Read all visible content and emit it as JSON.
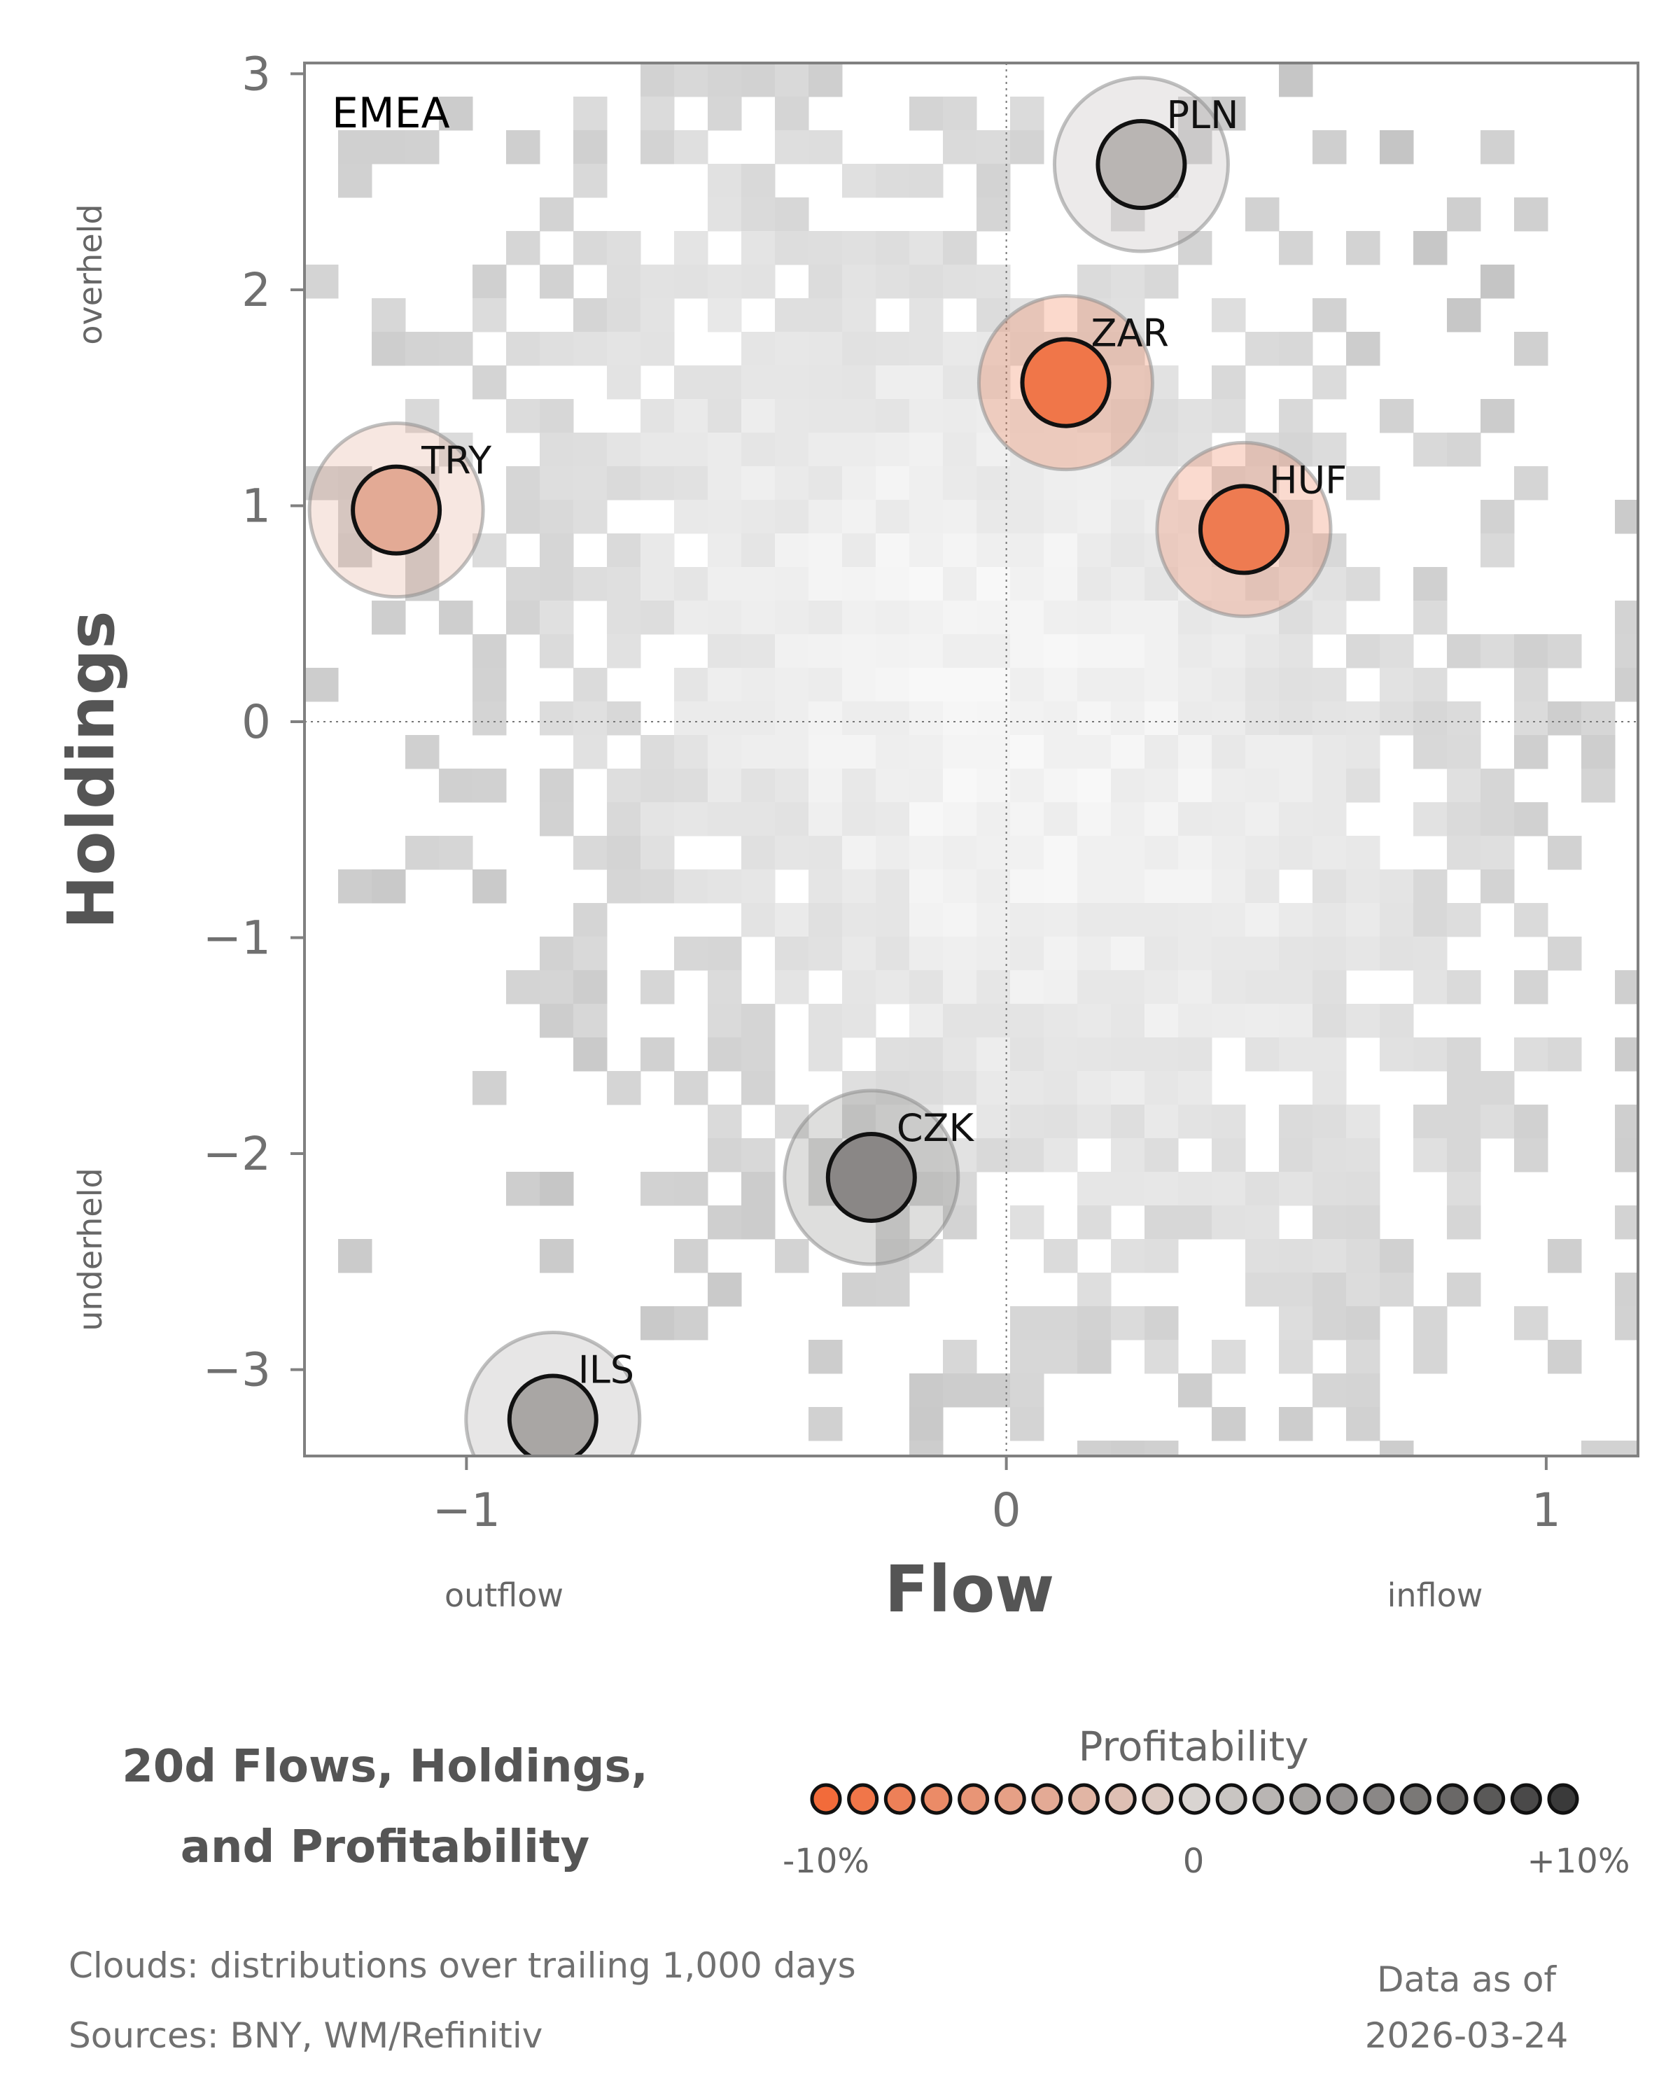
{
  "chart_data": {
    "type": "scatter",
    "title": "20d Flows, Holdings,",
    "title_line2": "and Profitability",
    "region": "EMEA",
    "xlabel": "Flow",
    "ylabel": "Holdings",
    "x_low_label": "outflow",
    "x_high_label": "inflow",
    "y_high_label": "overheld",
    "y_low_label": "underheld",
    "xlim": [
      -1.3,
      1.17
    ],
    "ylim": [
      -3.4,
      3.05
    ],
    "xticks": [
      {
        "v": -1,
        "t": "−1"
      },
      {
        "v": 0,
        "t": "0"
      },
      {
        "v": 1,
        "t": "1"
      }
    ],
    "yticks": [
      {
        "v": 3,
        "t": "3"
      },
      {
        "v": 2,
        "t": "2"
      },
      {
        "v": 1,
        "t": "1"
      },
      {
        "v": 0,
        "t": "0"
      },
      {
        "v": -1,
        "t": "−1"
      },
      {
        "v": -2,
        "t": "−2"
      },
      {
        "v": -3,
        "t": "−3"
      }
    ],
    "points": [
      {
        "label": "PLN",
        "x": 0.25,
        "y": 2.58,
        "profitability": 2
      },
      {
        "label": "ZAR",
        "x": 0.11,
        "y": 1.57,
        "profitability": -9
      },
      {
        "label": "TRY",
        "x": -1.13,
        "y": 0.98,
        "profitability": -4
      },
      {
        "label": "HUF",
        "x": 0.44,
        "y": 0.89,
        "profitability": -8.5
      },
      {
        "label": "CZK",
        "x": -0.25,
        "y": -2.11,
        "profitability": 5
      },
      {
        "label": "ILS",
        "x": -0.84,
        "y": -3.23,
        "profitability": 3
      }
    ],
    "colorbar": {
      "title": "Profitability",
      "min_label": "-10%",
      "mid_label": "0",
      "max_label": "+10%",
      "range": [
        -10,
        10
      ],
      "low_color": "#f26b3a",
      "mid_color": "#d9d4d1",
      "high_color": "#3a3a3a"
    }
  },
  "footer": {
    "clouds": "Clouds:  distributions over trailing 1,000 days",
    "sources": "Sources:  BNY, WM/Refinitiv",
    "asof_label": "Data as of",
    "asof_date": "2026-03-24"
  }
}
